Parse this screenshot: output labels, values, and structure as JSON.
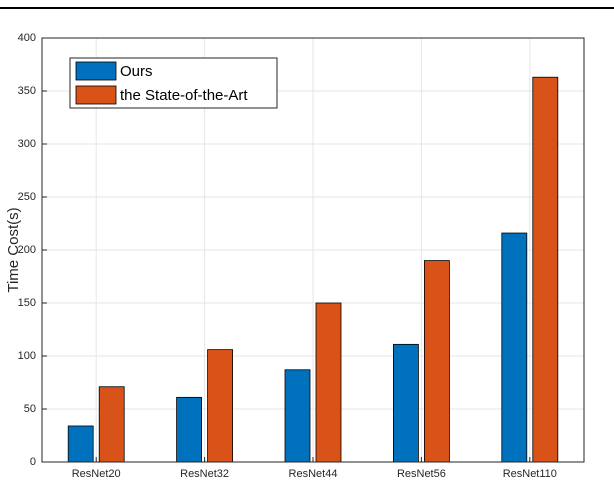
{
  "chart_data": {
    "type": "bar",
    "ylabel": "Time Cost(s)",
    "categories": [
      "ResNet20",
      "ResNet32",
      "ResNet44",
      "ResNet56",
      "ResNet110"
    ],
    "series": [
      {
        "name": "Ours",
        "color": "#0072bd",
        "values": [
          34,
          61,
          87,
          111,
          216
        ]
      },
      {
        "name": "the State-of-the-Art",
        "color": "#d95319",
        "values": [
          71,
          106,
          150,
          190,
          363
        ]
      }
    ],
    "ylim": [
      0,
      400
    ],
    "yticks": [
      0,
      50,
      100,
      150,
      200,
      250,
      300,
      350,
      400
    ],
    "grid": true,
    "legend": "upper-left"
  }
}
